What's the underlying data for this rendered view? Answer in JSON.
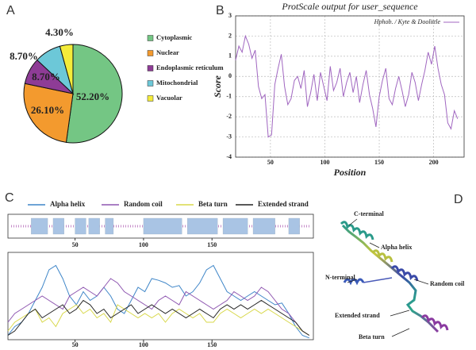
{
  "chart_data": [
    {
      "panel": "A",
      "type": "pie",
      "categories": [
        "Cytoplasmic",
        "Nuclear",
        "Endoplasmic reticulum",
        "Mitochondrial",
        "Vacuolar"
      ],
      "values": [
        52.2,
        26.1,
        8.7,
        8.7,
        4.3
      ],
      "value_labels": [
        "52.20%",
        "26.10%",
        "8.70%",
        "8.70%",
        "4.30%"
      ],
      "colors": [
        "#74c684",
        "#f39a2e",
        "#8e3c96",
        "#6cc8d8",
        "#f4ec3a"
      ]
    },
    {
      "panel": "B",
      "type": "line",
      "title": "ProtScale output for user_sequence",
      "xlabel": "Position",
      "ylabel": "Score",
      "x": [
        18,
        21,
        24,
        27,
        30,
        33,
        36,
        39,
        42,
        45,
        48,
        51,
        54,
        57,
        60,
        63,
        66,
        69,
        72,
        75,
        78,
        81,
        84,
        87,
        90,
        93,
        96,
        99,
        102,
        105,
        108,
        111,
        114,
        117,
        120,
        123,
        126,
        129,
        132,
        135,
        138,
        141,
        144,
        147,
        150,
        153,
        156,
        159,
        162,
        165,
        168,
        171,
        174,
        177,
        180,
        183,
        186,
        189,
        192,
        195,
        198,
        201,
        204,
        207,
        210,
        213,
        216,
        219,
        222
      ],
      "series": [
        {
          "name": "Hphob. / Kyte & Doolittle",
          "color": "#a066c0",
          "values": [
            0.8,
            1.5,
            1.2,
            2.0,
            1.6,
            0.9,
            1.3,
            -0.5,
            -1.1,
            -0.9,
            -3.0,
            -2.9,
            -0.4,
            0.4,
            1.1,
            -0.5,
            -1.4,
            -1.1,
            -0.2,
            0.0,
            -0.6,
            0.3,
            -1.5,
            -0.8,
            0.1,
            -1.2,
            0.2,
            -0.5,
            -1.2,
            0.5,
            -0.7,
            -0.3,
            0.4,
            -1.0,
            -0.3,
            0.2,
            -0.8,
            0.0,
            -1.3,
            -0.4,
            0.3,
            -0.9,
            -1.6,
            -2.5,
            -1.0,
            -0.2,
            0.4,
            -1.1,
            -1.4,
            -0.6,
            0.0,
            -0.7,
            -1.5,
            -0.9,
            0.2,
            -0.3,
            -1.2,
            -0.4,
            0.3,
            1.2,
            0.6,
            1.5,
            0.4,
            -0.4,
            -0.9,
            -2.3,
            -2.6,
            -1.7,
            -2.1
          ]
        }
      ],
      "xlim": [
        18,
        228
      ],
      "ylim": [
        -4,
        3
      ],
      "xticks": [
        50,
        100,
        150,
        200
      ],
      "yticks": [
        -4,
        -3,
        -2,
        -1,
        0,
        1,
        2,
        3
      ],
      "grid": true,
      "legend": "top-right"
    },
    {
      "panel": "C",
      "type": "segments",
      "color": "#a9c4e4",
      "segments": [
        [
          18,
          30
        ],
        [
          34,
          42
        ],
        [
          50,
          58
        ],
        [
          60,
          68
        ],
        [
          72,
          78
        ],
        [
          100,
          128
        ],
        [
          132,
          154
        ],
        [
          158,
          176
        ],
        [
          180,
          196
        ],
        [
          206,
          214
        ]
      ],
      "xlim": [
        1,
        224
      ],
      "xticks": [
        50,
        100,
        150
      ]
    },
    {
      "type": "line",
      "x": [
        1,
        6,
        11,
        16,
        21,
        26,
        31,
        36,
        41,
        46,
        51,
        56,
        61,
        66,
        71,
        76,
        81,
        86,
        91,
        96,
        101,
        106,
        111,
        116,
        121,
        126,
        131,
        136,
        141,
        146,
        151,
        156,
        161,
        166,
        171,
        176,
        181,
        186,
        191,
        196,
        201,
        206,
        211,
        216,
        221
      ],
      "series": [
        {
          "name": "Alpha helix",
          "color": "#3f86c8",
          "values": [
            0.05,
            0.15,
            0.2,
            0.3,
            0.45,
            0.6,
            0.8,
            0.85,
            0.7,
            0.5,
            0.4,
            0.55,
            0.45,
            0.5,
            0.6,
            0.5,
            0.35,
            0.3,
            0.45,
            0.6,
            0.55,
            0.7,
            0.68,
            0.65,
            0.6,
            0.62,
            0.5,
            0.55,
            0.65,
            0.8,
            0.85,
            0.7,
            0.55,
            0.5,
            0.45,
            0.5,
            0.55,
            0.5,
            0.45,
            0.4,
            0.42,
            0.3,
            0.15,
            0.05,
            0.02
          ]
        },
        {
          "name": "Random coil",
          "color": "#8e56b0",
          "values": [
            0.2,
            0.3,
            0.35,
            0.4,
            0.45,
            0.5,
            0.45,
            0.4,
            0.35,
            0.5,
            0.55,
            0.6,
            0.55,
            0.5,
            0.6,
            0.7,
            0.65,
            0.55,
            0.5,
            0.45,
            0.4,
            0.35,
            0.45,
            0.5,
            0.45,
            0.4,
            0.55,
            0.5,
            0.45,
            0.4,
            0.35,
            0.4,
            0.45,
            0.55,
            0.5,
            0.45,
            0.5,
            0.6,
            0.55,
            0.45,
            0.35,
            0.3,
            0.2,
            0.1,
            0.05
          ]
        },
        {
          "name": "Beta turn",
          "color": "#d8d84a",
          "values": [
            0.1,
            0.2,
            0.25,
            0.3,
            0.35,
            0.2,
            0.25,
            0.15,
            0.3,
            0.35,
            0.4,
            0.3,
            0.35,
            0.25,
            0.3,
            0.2,
            0.4,
            0.35,
            0.3,
            0.25,
            0.3,
            0.25,
            0.3,
            0.2,
            0.3,
            0.35,
            0.3,
            0.25,
            0.3,
            0.2,
            0.2,
            0.3,
            0.35,
            0.3,
            0.25,
            0.3,
            0.35,
            0.3,
            0.35,
            0.3,
            0.25,
            0.2,
            0.15,
            0.1,
            0.05
          ]
        },
        {
          "name": "Extended strand",
          "color": "#222222",
          "values": [
            0.05,
            0.1,
            0.2,
            0.3,
            0.35,
            0.25,
            0.3,
            0.35,
            0.4,
            0.3,
            0.35,
            0.45,
            0.4,
            0.3,
            0.35,
            0.25,
            0.3,
            0.35,
            0.4,
            0.3,
            0.35,
            0.4,
            0.35,
            0.3,
            0.35,
            0.3,
            0.25,
            0.3,
            0.35,
            0.3,
            0.25,
            0.35,
            0.4,
            0.35,
            0.4,
            0.35,
            0.4,
            0.45,
            0.4,
            0.35,
            0.3,
            0.25,
            0.2,
            0.1,
            0.05
          ]
        }
      ],
      "xlim": [
        1,
        224
      ],
      "ylim": [
        0,
        1
      ],
      "xticks": [
        50,
        100,
        150
      ],
      "legend": "top"
    }
  ],
  "panel_d": {
    "panel": "D",
    "labels": [
      "C-terminal",
      "Alpha helix",
      "N-terminal",
      "Random coil",
      "Extended strand",
      "Beta turn"
    ]
  }
}
